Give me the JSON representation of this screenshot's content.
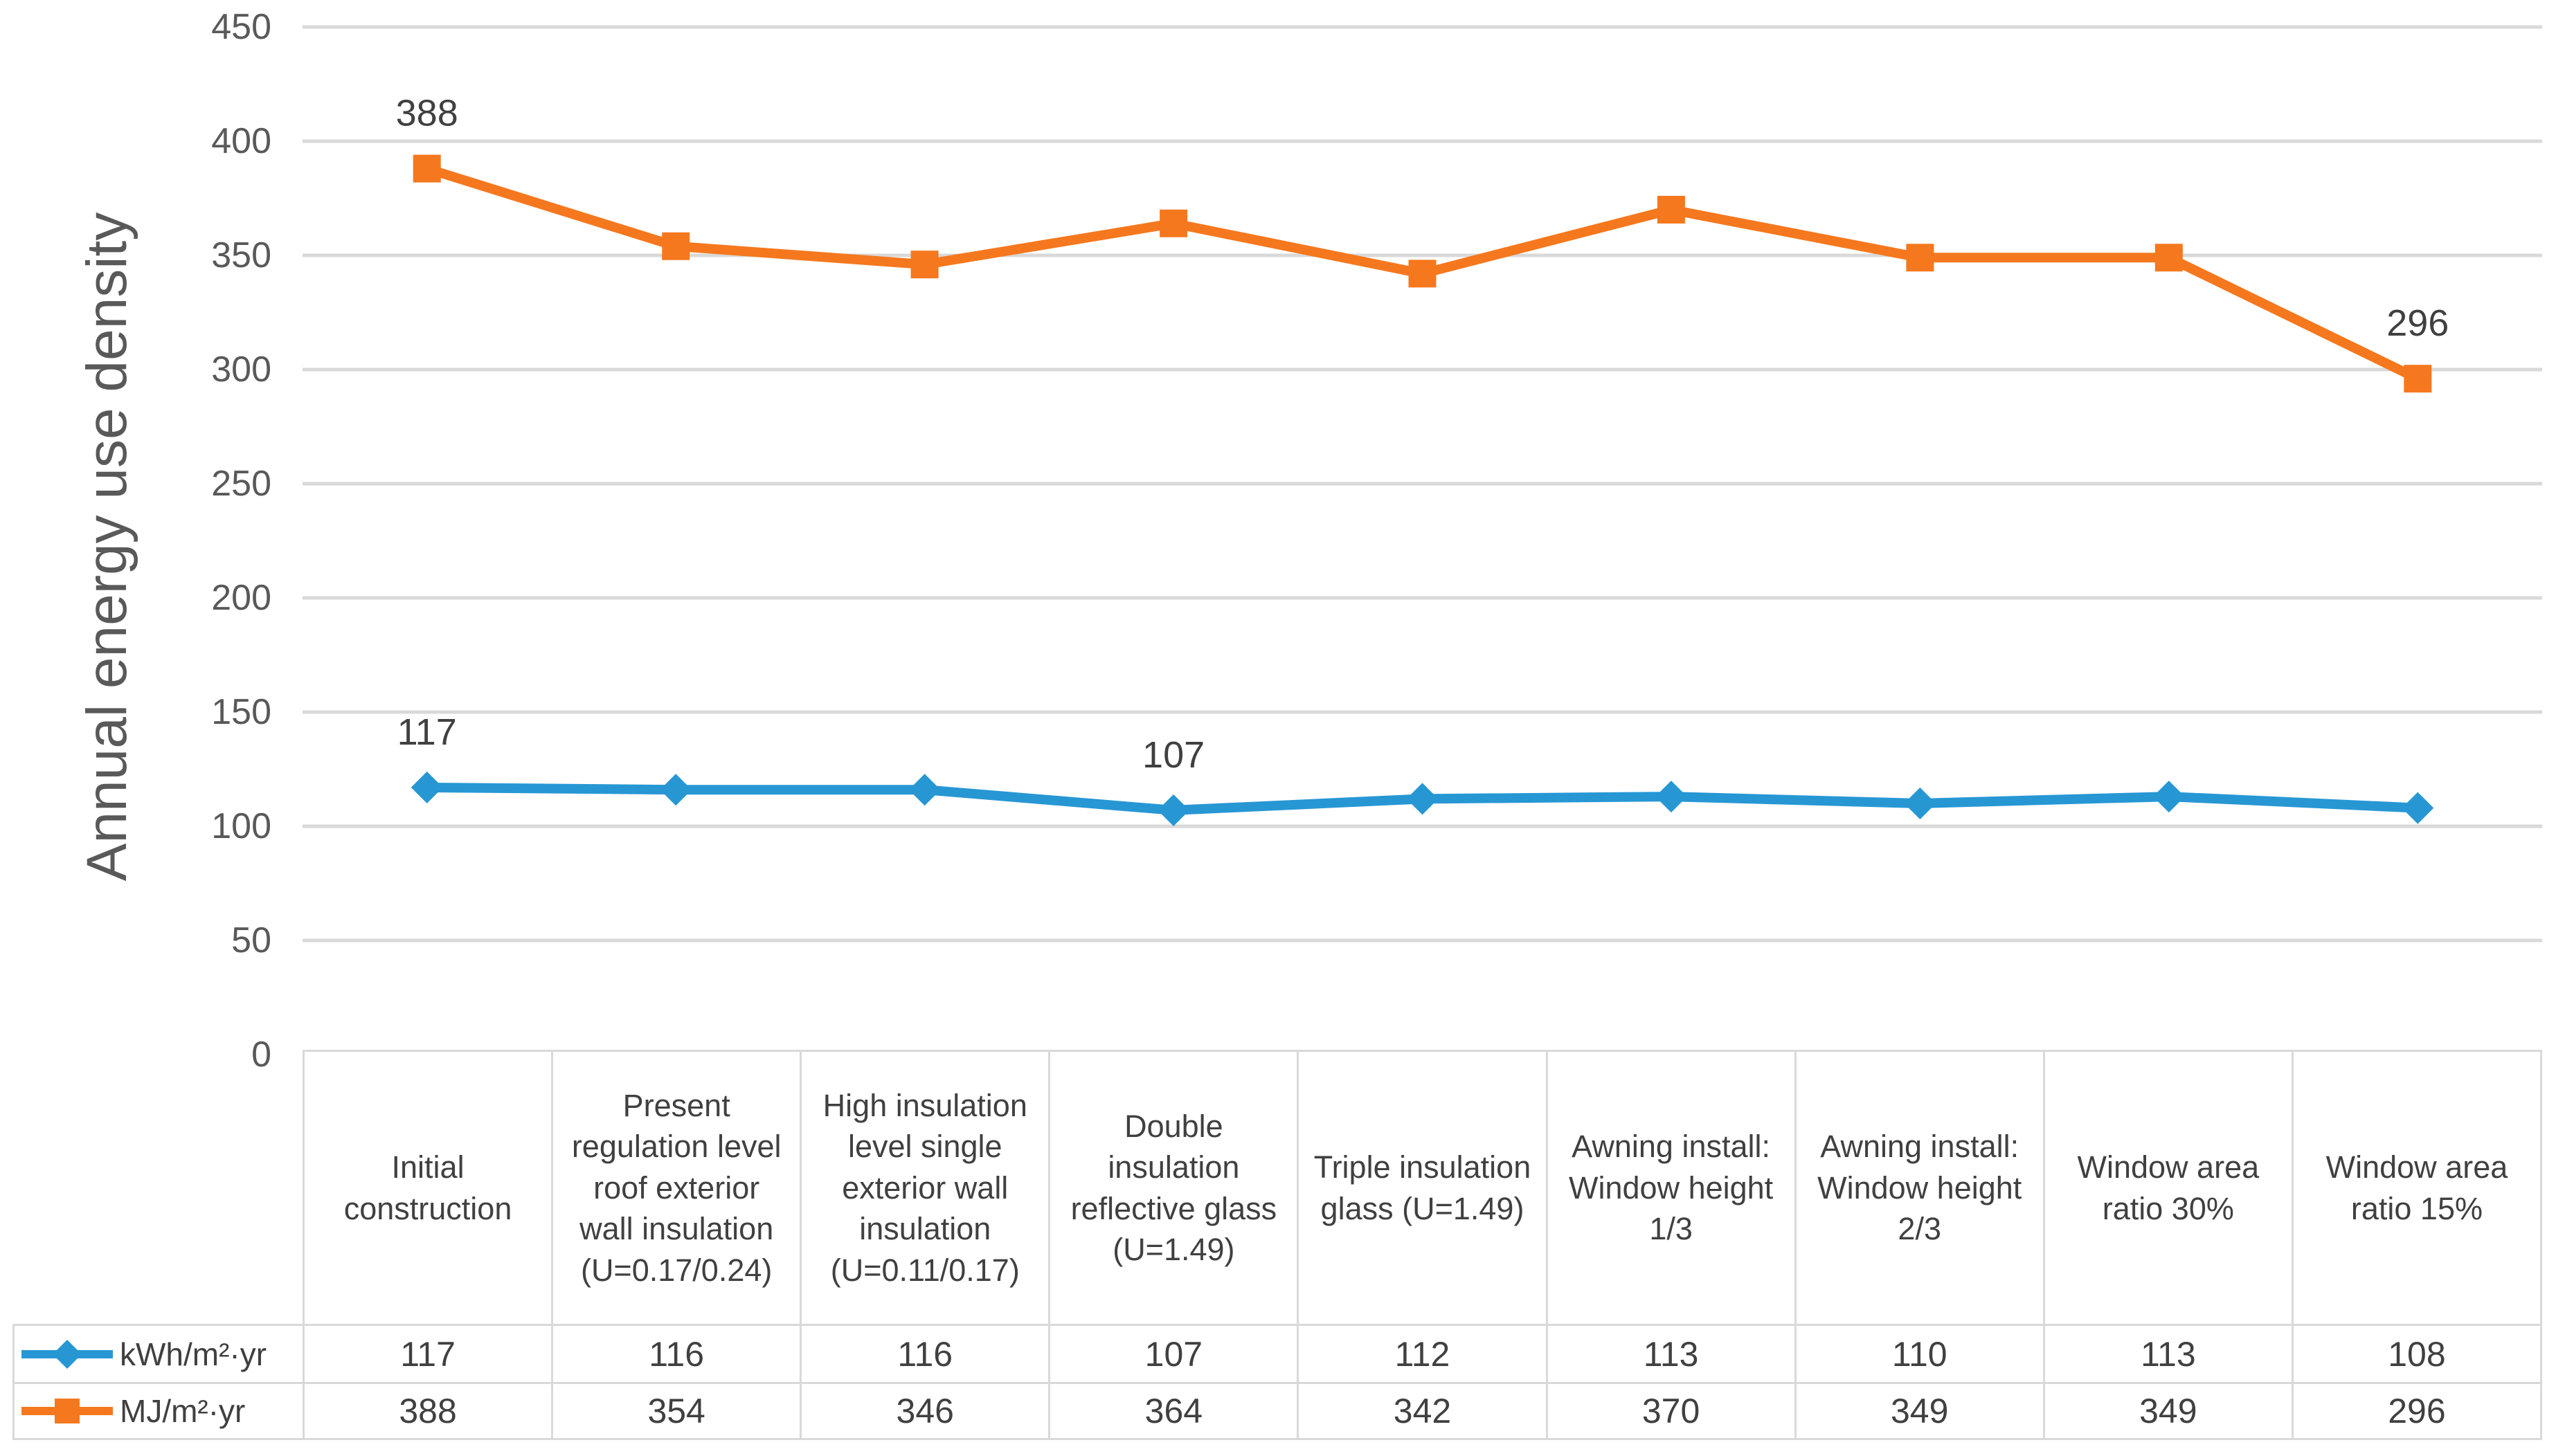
{
  "colors": {
    "series_kwh": "#2797D4",
    "series_mj": "#F5781E",
    "gridline": "#D9D9D9",
    "table_border": "#D9D9D9",
    "axis_text": "#595959",
    "label_text": "#404040"
  },
  "chart": {
    "y_axis_title": "Annual energy use density"
  },
  "chart_data": {
    "type": "line",
    "title": "",
    "xlabel": "",
    "ylabel": "Annual energy use density",
    "ylim": [
      0,
      450
    ],
    "y_ticks": [
      450,
      400,
      350,
      300,
      250,
      200,
      150,
      100,
      50,
      0
    ],
    "grid": true,
    "legend_position": "data-table-left",
    "categories": [
      "Initial construction",
      "Present regulation level roof exterior wall insulation (U=0.17/0.24)",
      "High insulation level single exterior wall insulation (U=0.11/0.17)",
      "Double insulation reflective glass (U=1.49)",
      "Triple insulation glass (U=1.49)",
      "Awning install: Window height 1/3",
      "Awning install: Window height 2/3",
      "Window area ratio 30%",
      "Window area ratio 15%"
    ],
    "series": [
      {
        "name": "kWh/m²·yr",
        "color": "#2797D4",
        "marker": "diamond",
        "values": [
          117,
          116,
          116,
          107,
          112,
          113,
          110,
          113,
          108
        ]
      },
      {
        "name": "MJ/m²·yr",
        "color": "#F5781E",
        "marker": "square",
        "values": [
          388,
          354,
          346,
          364,
          342,
          370,
          349,
          349,
          296
        ]
      }
    ],
    "annotations": [
      {
        "series": 1,
        "point": 0,
        "text": "388"
      },
      {
        "series": 1,
        "point": 8,
        "text": "296"
      },
      {
        "series": 0,
        "point": 0,
        "text": "117"
      },
      {
        "series": 0,
        "point": 3,
        "text": "107"
      }
    ]
  }
}
